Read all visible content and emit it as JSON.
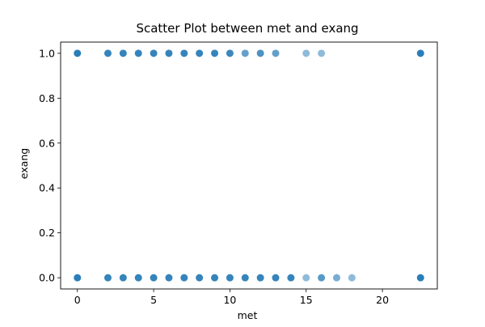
{
  "chart_data": {
    "type": "scatter",
    "title": "Scatter Plot between met and exang",
    "xlabel": "met",
    "ylabel": "exang",
    "xlim": [
      -1.1,
      23.6
    ],
    "ylim": [
      -0.05,
      1.05
    ],
    "xticks": [
      0,
      5,
      10,
      15,
      20
    ],
    "yticks": [
      0.0,
      0.2,
      0.4,
      0.6,
      0.8,
      1.0
    ],
    "xtick_labels": [
      "0",
      "5",
      "10",
      "15",
      "20"
    ],
    "ytick_labels": [
      "0.0",
      "0.2",
      "0.4",
      "0.6",
      "0.8",
      "1.0"
    ],
    "grid": false,
    "marker_color": "#1f77b4",
    "series": [
      {
        "points": [
          {
            "x": 0,
            "y": 1,
            "alpha": 0.95
          },
          {
            "x": 2,
            "y": 1,
            "alpha": 0.9
          },
          {
            "x": 3,
            "y": 1,
            "alpha": 0.9
          },
          {
            "x": 4,
            "y": 1,
            "alpha": 0.9
          },
          {
            "x": 5,
            "y": 1,
            "alpha": 0.9
          },
          {
            "x": 6,
            "y": 1,
            "alpha": 0.9
          },
          {
            "x": 7,
            "y": 1,
            "alpha": 0.9
          },
          {
            "x": 8,
            "y": 1,
            "alpha": 0.9
          },
          {
            "x": 9,
            "y": 1,
            "alpha": 0.9
          },
          {
            "x": 10,
            "y": 1,
            "alpha": 0.88
          },
          {
            "x": 11,
            "y": 1,
            "alpha": 0.7
          },
          {
            "x": 12,
            "y": 1,
            "alpha": 0.8
          },
          {
            "x": 13,
            "y": 1,
            "alpha": 0.7
          },
          {
            "x": 15,
            "y": 1,
            "alpha": 0.5
          },
          {
            "x": 16,
            "y": 1,
            "alpha": 0.5
          },
          {
            "x": 22.5,
            "y": 1,
            "alpha": 0.95
          },
          {
            "x": 0,
            "y": 0,
            "alpha": 0.95
          },
          {
            "x": 2,
            "y": 0,
            "alpha": 0.9
          },
          {
            "x": 3,
            "y": 0,
            "alpha": 0.9
          },
          {
            "x": 4,
            "y": 0,
            "alpha": 0.9
          },
          {
            "x": 5,
            "y": 0,
            "alpha": 0.9
          },
          {
            "x": 6,
            "y": 0,
            "alpha": 0.9
          },
          {
            "x": 7,
            "y": 0,
            "alpha": 0.9
          },
          {
            "x": 8,
            "y": 0,
            "alpha": 0.9
          },
          {
            "x": 9,
            "y": 0,
            "alpha": 0.9
          },
          {
            "x": 10,
            "y": 0,
            "alpha": 0.9
          },
          {
            "x": 11,
            "y": 0,
            "alpha": 0.9
          },
          {
            "x": 12,
            "y": 0,
            "alpha": 0.9
          },
          {
            "x": 13,
            "y": 0,
            "alpha": 0.9
          },
          {
            "x": 14,
            "y": 0,
            "alpha": 0.9
          },
          {
            "x": 15,
            "y": 0,
            "alpha": 0.5
          },
          {
            "x": 16,
            "y": 0,
            "alpha": 0.75
          },
          {
            "x": 17,
            "y": 0,
            "alpha": 0.6
          },
          {
            "x": 18,
            "y": 0,
            "alpha": 0.5
          },
          {
            "x": 22.5,
            "y": 0,
            "alpha": 0.95
          }
        ]
      }
    ]
  }
}
